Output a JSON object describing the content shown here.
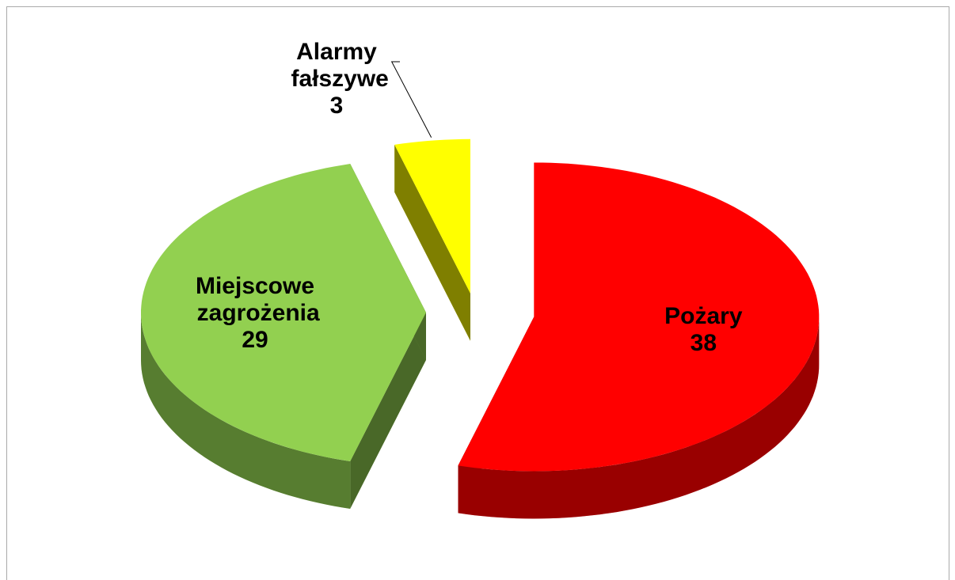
{
  "chart_data": {
    "type": "pie",
    "categories": [
      "Pożary",
      "Miejscowe zagrożenia",
      "Alarmy fałszywe"
    ],
    "values": [
      38,
      29,
      3
    ],
    "colors": [
      "#ff0000",
      "#92d050",
      "#ffff00"
    ]
  }
}
